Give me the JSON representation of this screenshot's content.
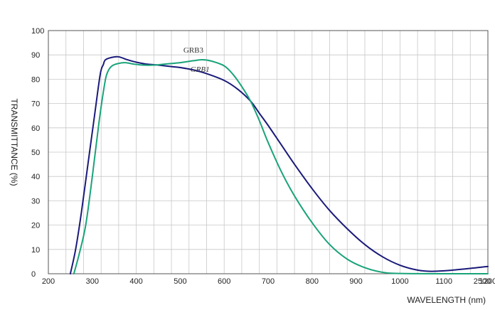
{
  "chart_data": {
    "type": "line",
    "title": "",
    "xlabel": "WAVELENGTH (nm)",
    "ylabel": "TRANSMITTANCE (%)",
    "xlim": [
      200,
      2500
    ],
    "ylim": [
      0,
      100
    ],
    "x_ticks": [
      "200",
      "300",
      "400",
      "500",
      "600",
      "700",
      "800",
      "900",
      "1000",
      "1100",
      "1200",
      "2500"
    ],
    "y_ticks": [
      "0",
      "10",
      "20",
      "30",
      "40",
      "50",
      "60",
      "70",
      "80",
      "90",
      "100"
    ],
    "grid": true,
    "series": [
      {
        "name": "GRB3",
        "color": "#1a1a7a",
        "points": [
          [
            250,
            0
          ],
          [
            262,
            10
          ],
          [
            275,
            25
          ],
          [
            290,
            45
          ],
          [
            305,
            65
          ],
          [
            318,
            82
          ],
          [
            325,
            86
          ],
          [
            330,
            88
          ],
          [
            345,
            89
          ],
          [
            360,
            89.2
          ],
          [
            380,
            88
          ],
          [
            400,
            87
          ],
          [
            420,
            86.3
          ],
          [
            450,
            85.8
          ],
          [
            480,
            85.2
          ],
          [
            500,
            84.8
          ],
          [
            530,
            83.8
          ],
          [
            560,
            82.3
          ],
          [
            600,
            79.5
          ],
          [
            630,
            76
          ],
          [
            660,
            71
          ],
          [
            680,
            66
          ],
          [
            700,
            61
          ],
          [
            730,
            53
          ],
          [
            760,
            45
          ],
          [
            800,
            35
          ],
          [
            840,
            26
          ],
          [
            880,
            18.5
          ],
          [
            920,
            12
          ],
          [
            960,
            7
          ],
          [
            1000,
            3.5
          ],
          [
            1040,
            1.5
          ],
          [
            1070,
            1
          ],
          [
            1100,
            1.2
          ],
          [
            1150,
            2
          ],
          [
            1200,
            3
          ],
          [
            1300,
            4.7
          ],
          [
            1500,
            6
          ],
          [
            2500,
            7
          ]
        ]
      },
      {
        "name": "GRB1",
        "color": "#1aa37a",
        "points": [
          [
            258,
            0
          ],
          [
            270,
            8
          ],
          [
            285,
            20
          ],
          [
            300,
            40
          ],
          [
            315,
            62
          ],
          [
            328,
            78
          ],
          [
            335,
            83
          ],
          [
            345,
            85.5
          ],
          [
            360,
            86.5
          ],
          [
            375,
            86.8
          ],
          [
            395,
            86.2
          ],
          [
            415,
            85.8
          ],
          [
            440,
            85.8
          ],
          [
            470,
            86.3
          ],
          [
            500,
            86.8
          ],
          [
            530,
            87.6
          ],
          [
            550,
            88
          ],
          [
            570,
            87.5
          ],
          [
            600,
            85.5
          ],
          [
            620,
            82
          ],
          [
            640,
            77
          ],
          [
            660,
            71
          ],
          [
            680,
            63
          ],
          [
            700,
            54
          ],
          [
            730,
            42
          ],
          [
            760,
            32
          ],
          [
            800,
            21
          ],
          [
            840,
            12
          ],
          [
            880,
            6
          ],
          [
            920,
            2.5
          ],
          [
            960,
            0.6
          ],
          [
            1000,
            0.1
          ],
          [
            1100,
            0
          ],
          [
            2500,
            0
          ]
        ]
      }
    ],
    "annotations": [
      {
        "text": "GRB3",
        "series": "GRB3"
      },
      {
        "text": "GRB1",
        "series": "GRB1"
      }
    ]
  }
}
